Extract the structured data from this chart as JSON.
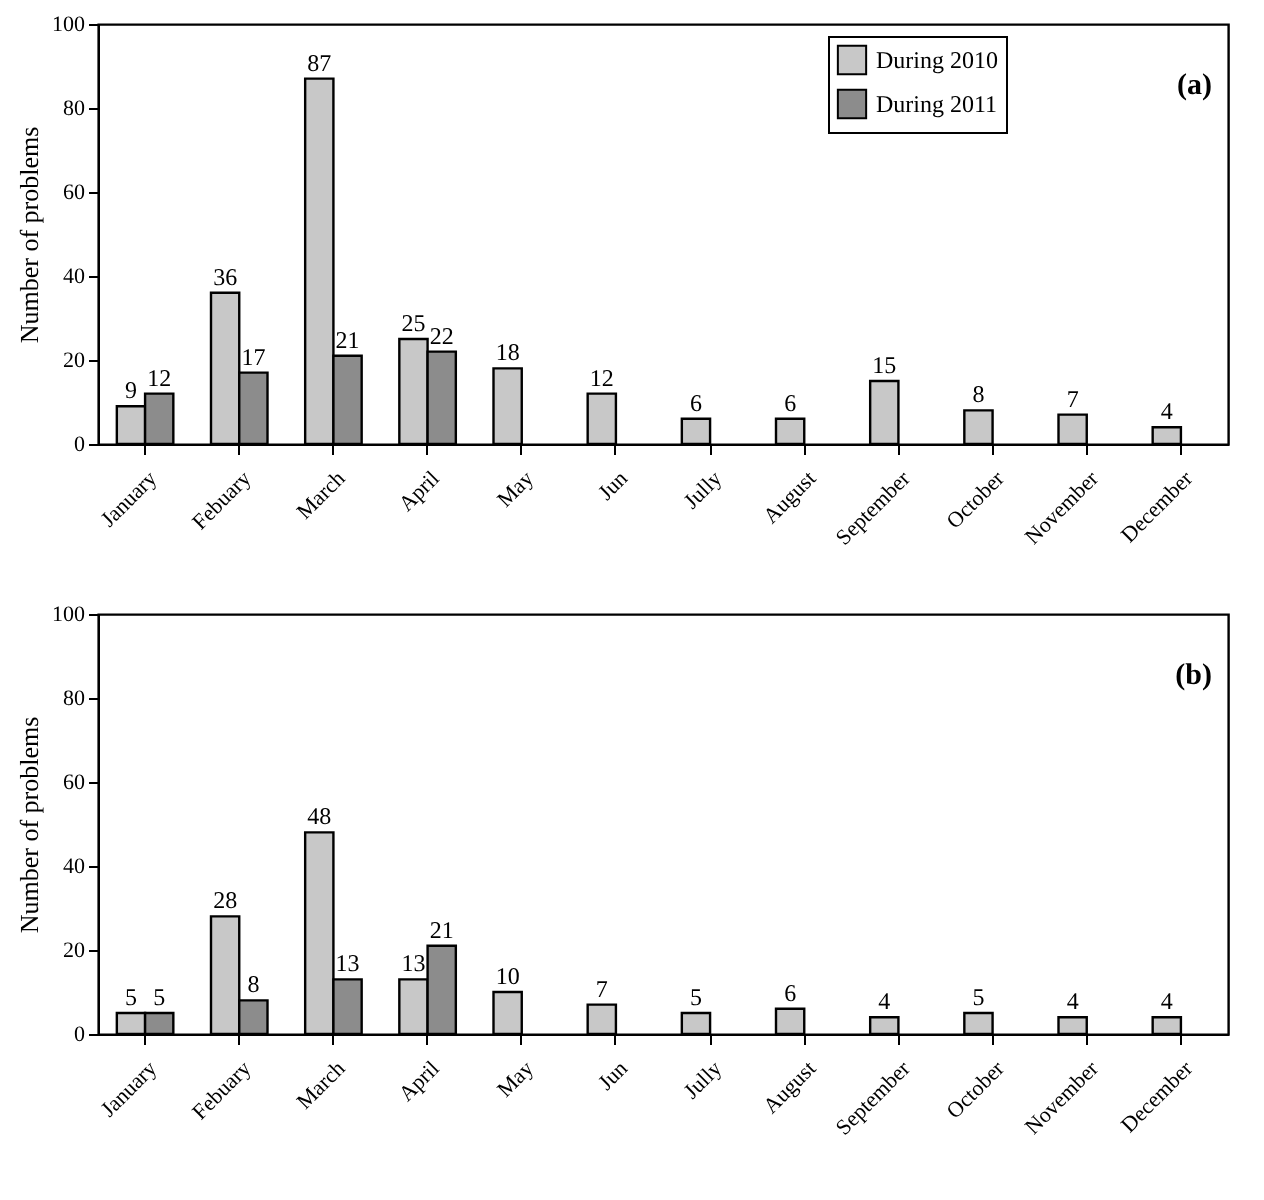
{
  "chart_data": [
    {
      "type": "bar",
      "categories": [
        "January",
        "Febuary",
        "March",
        "April",
        "May",
        "Jun",
        "Jully",
        "August",
        "September",
        "October",
        "November",
        "December"
      ],
      "ylabel": "Number of problems",
      "ylim": [
        0,
        100
      ],
      "yticks": [
        0,
        20,
        40,
        60,
        80,
        100
      ],
      "grid": false,
      "legend": "top right",
      "data_labels": true,
      "annotations": [
        "(a)"
      ],
      "series": [
        {
          "name": "During 2010",
          "color": "#c8c8c8",
          "values": [
            9,
            36,
            87,
            25,
            18,
            12,
            6,
            6,
            15,
            8,
            7,
            4
          ]
        },
        {
          "name": "During 2011",
          "color": "#8c8c8c",
          "values": [
            12,
            17,
            21,
            22,
            null,
            null,
            null,
            null,
            null,
            null,
            null,
            null
          ]
        }
      ]
    },
    {
      "type": "bar",
      "categories": [
        "January",
        "Febuary",
        "March",
        "April",
        "May",
        "Jun",
        "Jully",
        "August",
        "September",
        "October",
        "November",
        "December"
      ],
      "ylabel": "Number of problems",
      "ylim": [
        0,
        100
      ],
      "yticks": [
        0,
        20,
        40,
        60,
        80,
        100
      ],
      "grid": false,
      "legend": false,
      "data_labels": true,
      "annotations": [
        "(b)"
      ],
      "series": [
        {
          "color": "#c8c8c8",
          "values": [
            5,
            28,
            48,
            13,
            10,
            7,
            5,
            6,
            4,
            5,
            4,
            4
          ]
        },
        {
          "color": "#8c8c8c",
          "values": [
            5,
            8,
            13,
            21,
            null,
            null,
            null,
            null,
            null,
            null,
            null,
            null
          ]
        }
      ]
    }
  ]
}
